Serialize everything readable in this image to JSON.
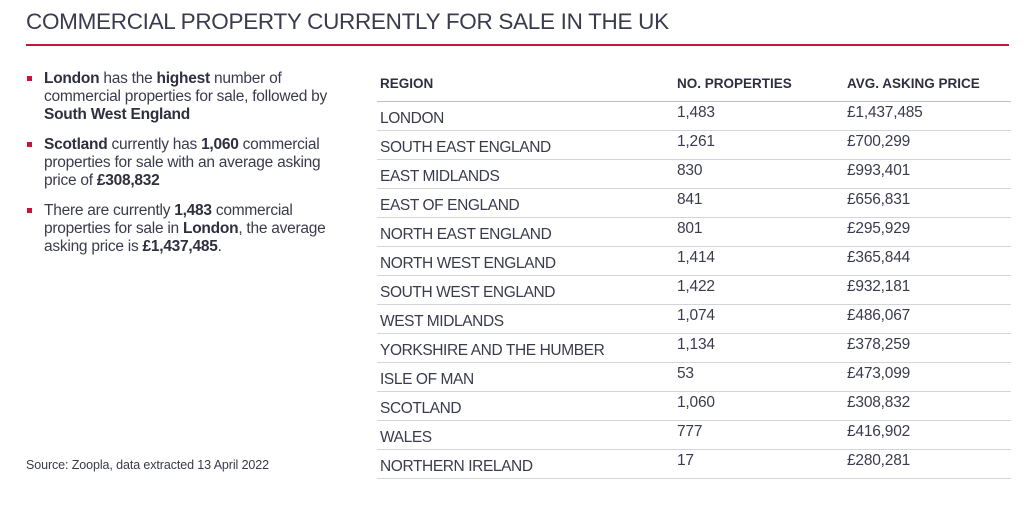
{
  "title": "COMMERCIAL PROPERTY CURRENTLY FOR SALE IN THE UK",
  "bullets": [
    {
      "parts": [
        {
          "text": "London",
          "bold": true
        },
        {
          "text": " has the ",
          "bold": false
        },
        {
          "text": "highest",
          "bold": true
        },
        {
          "text": " number of commercial properties for sale, followed by ",
          "bold": false
        },
        {
          "text": "South West England",
          "bold": true
        }
      ]
    },
    {
      "parts": [
        {
          "text": "Scotland",
          "bold": true
        },
        {
          "text": " currently has ",
          "bold": false
        },
        {
          "text": "1,060",
          "bold": true
        },
        {
          "text": " commercial properties for sale with an average asking price of ",
          "bold": false
        },
        {
          "text": "£308,832",
          "bold": true
        }
      ]
    },
    {
      "parts": [
        {
          "text": "There are currently ",
          "bold": false
        },
        {
          "text": "1,483",
          "bold": true
        },
        {
          "text": " commercial properties for sale in ",
          "bold": false
        },
        {
          "text": "London",
          "bold": true
        },
        {
          "text": ", the average asking price is ",
          "bold": false
        },
        {
          "text": "£1,437,485",
          "bold": true
        },
        {
          "text": ".",
          "bold": false
        }
      ]
    }
  ],
  "source": "Source: Zoopla, data extracted 13 April 2022",
  "colors": {
    "accent": "#c4163a",
    "text": "#2e2f3f"
  },
  "chart_data": {
    "type": "table",
    "columns": [
      "REGION",
      "NO. PROPERTIES",
      "AVG. ASKING PRICE"
    ],
    "rows": [
      [
        "LONDON",
        "1,483",
        "£1,437,485"
      ],
      [
        "SOUTH EAST ENGLAND",
        "1,261",
        "£700,299"
      ],
      [
        "EAST MIDLANDS",
        "830",
        "£993,401"
      ],
      [
        "EAST OF ENGLAND",
        "841",
        "£656,831"
      ],
      [
        "NORTH EAST ENGLAND",
        "801",
        "£295,929"
      ],
      [
        "NORTH WEST ENGLAND",
        "1,414",
        "£365,844"
      ],
      [
        "SOUTH WEST ENGLAND",
        "1,422",
        "£932,181"
      ],
      [
        "WEST MIDLANDS",
        "1,074",
        "£486,067"
      ],
      [
        "YORKSHIRE AND THE HUMBER",
        "1,134",
        "£378,259"
      ],
      [
        "ISLE OF MAN",
        "53",
        "£473,099"
      ],
      [
        "SCOTLAND",
        "1,060",
        "£308,832"
      ],
      [
        "WALES",
        "777",
        "£416,902"
      ],
      [
        "NORTHERN IRELAND",
        "17",
        "£280,281"
      ]
    ]
  }
}
